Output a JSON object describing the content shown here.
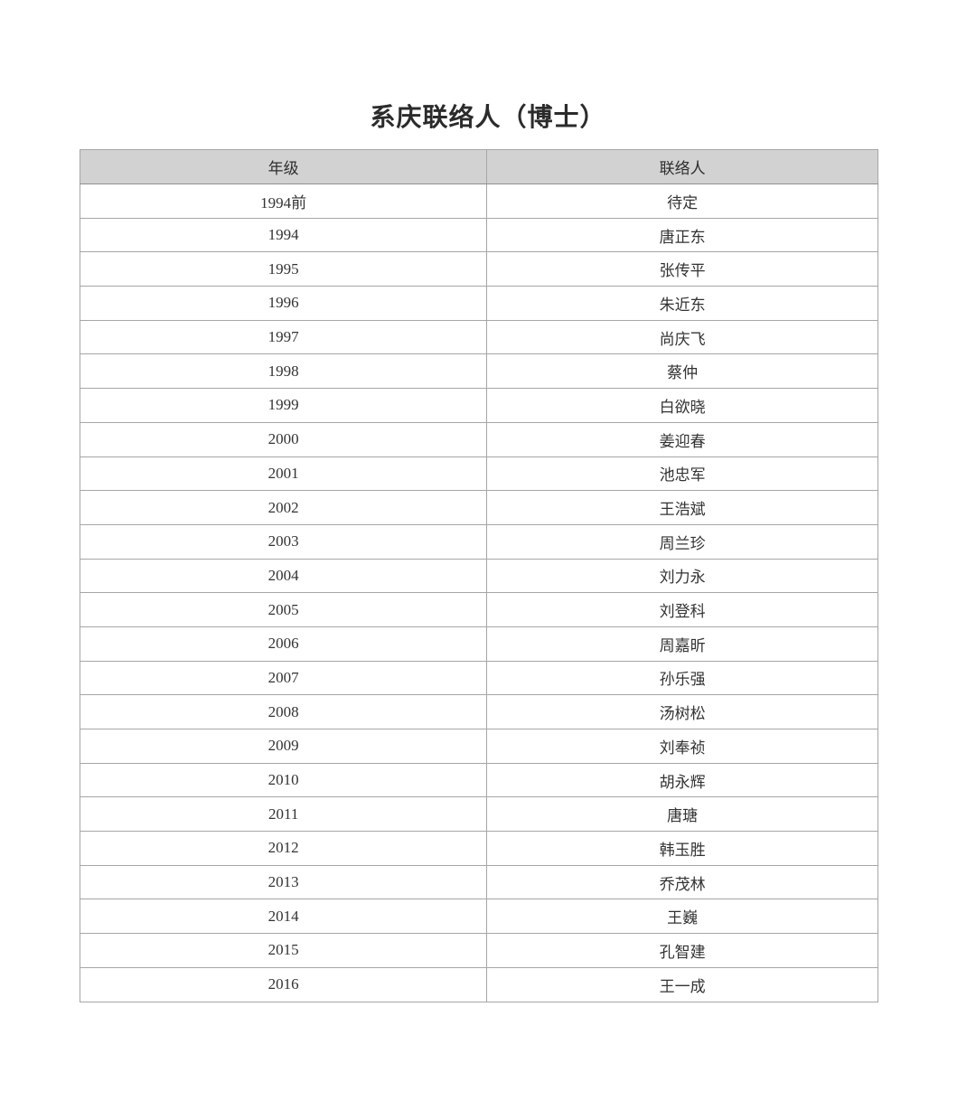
{
  "page": {
    "title": "系庆联络人（博士）"
  },
  "colors": {
    "header_background": "#d2d2d2",
    "grid_border": "#a6a6a6",
    "outer_border": "#8d8d8d",
    "text": "#333333",
    "page_background": "#ffffff"
  },
  "table": {
    "columns": [
      "年级",
      "联络人"
    ],
    "rows": [
      {
        "grade": "1994前",
        "contact": "待定"
      },
      {
        "grade": "1994",
        "contact": "唐正东"
      },
      {
        "grade": "1995",
        "contact": "张传平"
      },
      {
        "grade": "1996",
        "contact": "朱近东"
      },
      {
        "grade": "1997",
        "contact": "尚庆飞"
      },
      {
        "grade": "1998",
        "contact": "蔡仲"
      },
      {
        "grade": "1999",
        "contact": "白欲晓"
      },
      {
        "grade": "2000",
        "contact": "姜迎春"
      },
      {
        "grade": "2001",
        "contact": "池忠军"
      },
      {
        "grade": "2002",
        "contact": "王浩斌"
      },
      {
        "grade": "2003",
        "contact": "周兰珍"
      },
      {
        "grade": "2004",
        "contact": "刘力永"
      },
      {
        "grade": "2005",
        "contact": "刘登科"
      },
      {
        "grade": "2006",
        "contact": "周嘉昕"
      },
      {
        "grade": "2007",
        "contact": "孙乐强"
      },
      {
        "grade": "2008",
        "contact": "汤树松"
      },
      {
        "grade": "2009",
        "contact": "刘奉祯"
      },
      {
        "grade": "2010",
        "contact": "胡永辉"
      },
      {
        "grade": "2011",
        "contact": "唐瑭"
      },
      {
        "grade": "2012",
        "contact": "韩玉胜"
      },
      {
        "grade": "2013",
        "contact": "乔茂林"
      },
      {
        "grade": "2014",
        "contact": "王巍"
      },
      {
        "grade": "2015",
        "contact": "孔智建"
      },
      {
        "grade": "2016",
        "contact": "王一成"
      }
    ]
  }
}
